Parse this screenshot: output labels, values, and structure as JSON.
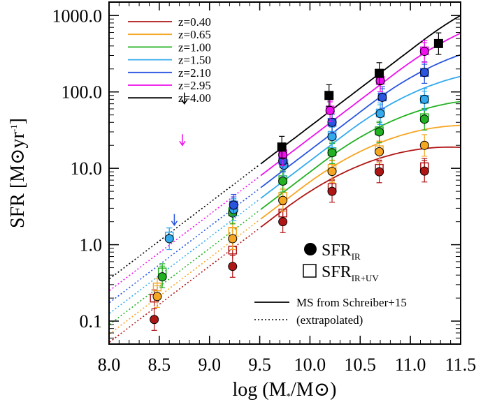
{
  "chart_data": {
    "type": "scatter",
    "xlabel": "log (M*/M⊙)",
    "ylabel": "SFR [M⊙yr-1]",
    "xlim": [
      8.0,
      11.5
    ],
    "ylim": [
      0.05,
      1500
    ],
    "yscale": "log",
    "x_ticks": [
      "8.0",
      "8.5",
      "9.0",
      "9.5",
      "10.0",
      "10.5",
      "11.0",
      "11.5"
    ],
    "y_ticks": [
      {
        "value": 0.1,
        "label": "0.1"
      },
      {
        "value": 1,
        "label": "1.0"
      },
      {
        "value": 10,
        "label": "10.0"
      },
      {
        "value": 100,
        "label": "100.0"
      },
      {
        "value": 1000,
        "label": "1000.0"
      }
    ],
    "legend_position": "top-left",
    "symbol_legend": {
      "ir_main": "SFR",
      "ir_sub": "IR",
      "iruv_main": "SFR",
      "iruv_sub": "IR+UV",
      "ms_label": "MS from Schreiber+15",
      "extrap_label": "(extrapolated)"
    },
    "series": [
      {
        "name": "z=0.40",
        "color": "#b01515",
        "x_ir": [
          8.45,
          9.23,
          9.73,
          10.22,
          10.69,
          11.14
        ],
        "y_ir": [
          0.105,
          0.52,
          2.0,
          5.0,
          9.0,
          9.2
        ],
        "y_iruv": [
          0.2,
          0.85,
          2.6,
          5.6,
          10.0,
          10.5
        ],
        "arrow": null
      },
      {
        "name": "z=0.65",
        "color": "#f5a623",
        "x_ir": [
          8.48,
          9.23,
          9.73,
          10.22,
          10.69,
          11.14
        ],
        "y_ir": [
          0.21,
          1.2,
          3.8,
          9.1,
          16.5,
          20.0
        ],
        "y_iruv": [
          0.28,
          1.5,
          4.3,
          10.0,
          17.5,
          null
        ],
        "arrow": null
      },
      {
        "name": "z=1.00",
        "color": "#22b122",
        "x_ir": [
          8.53,
          9.23,
          9.73,
          10.22,
          10.69,
          11.14
        ],
        "y_ir": [
          0.38,
          2.6,
          6.8,
          16.0,
          30.0,
          44.0
        ],
        "y_iruv": [
          0.44,
          2.7,
          7.1,
          16.5,
          31.0,
          46.0
        ],
        "arrow": null
      },
      {
        "name": "z=1.50",
        "color": "#33aaee",
        "x_ir": [
          8.6,
          9.24,
          9.74,
          10.22,
          10.7,
          11.14
        ],
        "y_ir": [
          1.2,
          2.9,
          11.0,
          26.0,
          52.0,
          80.0
        ],
        "y_iruv": [
          1.3,
          3.0,
          11.5,
          27.0,
          53.0,
          80.0
        ],
        "arrow": null
      },
      {
        "name": "z=2.10",
        "color": "#2955e0",
        "x_ir": [
          9.24,
          9.73,
          10.22,
          10.72,
          11.14
        ],
        "y_ir": [
          3.3,
          12.5,
          40.0,
          85.0,
          180.0
        ],
        "y_iruv": [
          3.3,
          12.8,
          40.0,
          86.0,
          180.0
        ],
        "arrow": {
          "x": 8.65,
          "y": 1.8
        }
      },
      {
        "name": "z=2.95",
        "color": "#ee10ee",
        "x_ir": [
          9.73,
          10.2,
          10.7,
          11.14
        ],
        "y_ir": [
          15.0,
          57.0,
          140.0,
          340.0
        ],
        "y_iruv": [
          15.5,
          58.0,
          142.0,
          345.0
        ],
        "arrow": {
          "x": 8.73,
          "y": 20.0
        }
      },
      {
        "name": "z=4.00",
        "color": "#000000",
        "x_ir": [
          9.72,
          10.19,
          10.69,
          11.28
        ],
        "y_ir": [
          19.0,
          90.0,
          175.0,
          430.0
        ],
        "y_iruv": [
          null,
          null,
          null,
          null
        ],
        "arrow": {
          "x": 8.75,
          "y": 70.0
        }
      }
    ]
  }
}
